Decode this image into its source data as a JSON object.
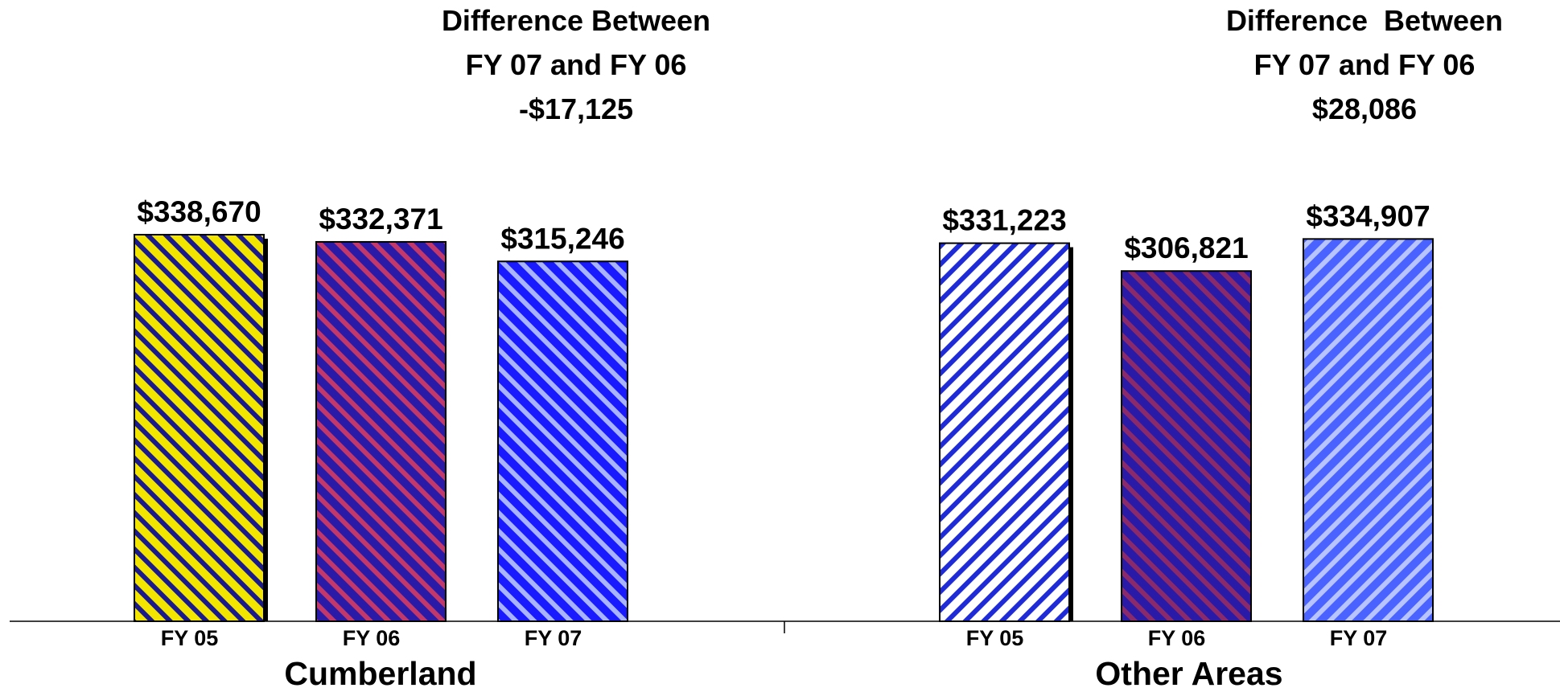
{
  "chart_data": {
    "type": "bar",
    "groups": [
      {
        "name": "Cumberland",
        "categories": [
          "FY 05",
          "FY 06",
          "FY 07"
        ],
        "values": [
          338670,
          332371,
          315246
        ],
        "value_labels": [
          "$338,670",
          "$332,371",
          "$315,246"
        ],
        "difference_label": [
          "Difference Between",
          "FY 07 and FY 06",
          "-$17,125"
        ]
      },
      {
        "name": "Other Areas",
        "categories": [
          "FY 05",
          "FY 06",
          "FY 07"
        ],
        "values": [
          331223,
          306821,
          334907
        ],
        "value_labels": [
          "$331,223",
          "$306,821",
          "$334,907"
        ],
        "difference_label": [
          "Difference  Between",
          "FY 07 and FY 06",
          "$28,086"
        ]
      }
    ],
    "ylim": [
      0,
      338670
    ],
    "grid": false,
    "legend": "none",
    "bar_styles": [
      {
        "base": "#f2e600",
        "stripe": "#1a1a8c",
        "direction": "backslash"
      },
      {
        "base": "#2a1aa8",
        "stripe": "#c2386a",
        "direction": "backslash"
      },
      {
        "base": "#1a1aff",
        "stripe": "#a8b4ff",
        "direction": "backslash"
      },
      {
        "base": "#ffffff",
        "stripe": "#1f2bd6",
        "direction": "slash"
      },
      {
        "base": "#2a1aa8",
        "stripe": "#8a2a6a",
        "direction": "backslash"
      },
      {
        "base": "#4a62ff",
        "stripe": "#b8c4ff",
        "direction": "slash"
      }
    ]
  }
}
